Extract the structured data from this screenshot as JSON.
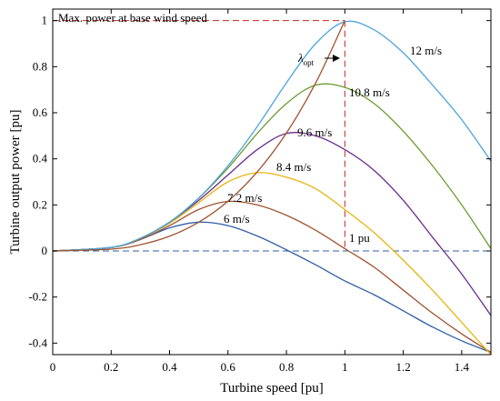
{
  "chart_data": {
    "type": "line",
    "title": "",
    "xlabel": "Turbine speed [pu]",
    "ylabel": "Turbine output power [pu]",
    "xlim": [
      0,
      1.5
    ],
    "ylim": [
      -0.45,
      1.05
    ],
    "grid": false,
    "x_ticks": [
      0,
      0.2,
      0.4,
      0.6,
      0.8,
      1,
      1.2,
      1.4
    ],
    "x_tick_labels": [
      "0",
      "0.2",
      "0.4",
      "0.6",
      "0.8",
      "1",
      "1.2",
      "1.4"
    ],
    "y_ticks": [
      -0.4,
      -0.2,
      0,
      0.2,
      0.4,
      0.6,
      0.8,
      1
    ],
    "y_tick_labels": [
      "-0.4",
      "-0.2",
      "0",
      "0.2",
      "0.4",
      "0.6",
      "0.8",
      "1"
    ],
    "series": [
      {
        "name": "6 m/s",
        "color": "#2f5fa7",
        "x": [
          0,
          0.2,
          0.3,
          0.4,
          0.5,
          0.6,
          0.7,
          0.8,
          0.9,
          1.0,
          1.1,
          1.2,
          1.3,
          1.4,
          1.5
        ],
        "y": [
          0,
          0.015,
          0.05,
          0.1,
          0.125,
          0.11,
          0.065,
          0.005,
          -0.06,
          -0.13,
          -0.19,
          -0.26,
          -0.33,
          -0.39,
          -0.44
        ]
      },
      {
        "name": "7.2 m/s",
        "color": "#a0522d",
        "x": [
          0,
          0.2,
          0.3,
          0.4,
          0.5,
          0.6,
          0.7,
          0.8,
          0.9,
          1.0,
          1.1,
          1.2,
          1.3,
          1.4,
          1.5
        ],
        "y": [
          0,
          0.015,
          0.05,
          0.11,
          0.18,
          0.215,
          0.2,
          0.155,
          0.09,
          0.01,
          -0.07,
          -0.17,
          -0.27,
          -0.36,
          -0.44
        ]
      },
      {
        "name": "8.4 m/s",
        "color": "#e8b50c",
        "x": [
          0,
          0.2,
          0.3,
          0.4,
          0.5,
          0.6,
          0.7,
          0.8,
          0.9,
          1.0,
          1.1,
          1.2,
          1.3,
          1.4,
          1.5
        ],
        "y": [
          0,
          0.015,
          0.055,
          0.12,
          0.21,
          0.3,
          0.34,
          0.32,
          0.27,
          0.18,
          0.08,
          -0.04,
          -0.17,
          -0.31,
          -0.45
        ]
      },
      {
        "name": "9.6 m/s",
        "color": "#6a2c8c",
        "x": [
          0,
          0.2,
          0.3,
          0.4,
          0.5,
          0.6,
          0.7,
          0.8,
          0.9,
          1.0,
          1.1,
          1.2,
          1.3,
          1.4,
          1.5
        ],
        "y": [
          0,
          0.015,
          0.055,
          0.125,
          0.22,
          0.33,
          0.44,
          0.51,
          0.5,
          0.44,
          0.35,
          0.22,
          0.06,
          -0.1,
          -0.28
        ]
      },
      {
        "name": "10.8 m/s",
        "color": "#6b9a2e",
        "x": [
          0,
          0.2,
          0.3,
          0.4,
          0.5,
          0.6,
          0.7,
          0.8,
          0.9,
          1.0,
          1.1,
          1.2,
          1.3,
          1.4,
          1.5
        ],
        "y": [
          0,
          0.015,
          0.055,
          0.125,
          0.23,
          0.36,
          0.51,
          0.64,
          0.72,
          0.71,
          0.64,
          0.52,
          0.37,
          0.2,
          0.01
        ]
      },
      {
        "name": "12 m/s",
        "color": "#4ba4de",
        "x": [
          0,
          0.2,
          0.3,
          0.4,
          0.5,
          0.6,
          0.7,
          0.8,
          0.9,
          1.0,
          1.1,
          1.2,
          1.3,
          1.4,
          1.5
        ],
        "y": [
          0,
          0.015,
          0.055,
          0.125,
          0.23,
          0.37,
          0.54,
          0.73,
          0.9,
          0.995,
          0.96,
          0.86,
          0.72,
          0.57,
          0.39
        ]
      },
      {
        "name": "λopt",
        "color": "#a0522d",
        "x": [
          0,
          0.2,
          0.3,
          0.4,
          0.5,
          0.6,
          0.7,
          0.8,
          0.9,
          1.0
        ],
        "y": [
          0,
          0.008,
          0.027,
          0.064,
          0.125,
          0.216,
          0.343,
          0.512,
          0.729,
          1.0
        ]
      }
    ],
    "reference_lines": [
      {
        "label": "Max. power at base wind speed",
        "orientation": "horizontal",
        "value": 1,
        "color": "#cc2222"
      },
      {
        "label": "1 pu",
        "orientation": "vertical",
        "value": 1,
        "color": "#cc2222"
      },
      {
        "label": "",
        "orientation": "horizontal",
        "value": 0,
        "color": "#2f5fa7"
      }
    ],
    "annotations": {
      "max_power": "Max. power at base wind speed",
      "one_pu": "1 pu",
      "lambda_main": "λ",
      "lambda_sub": "opt",
      "s6": "6 m/s",
      "s72": "7.2 m/s",
      "s84": "8.4 m/s",
      "s96": "9.6 m/s",
      "s108": "10.8 m/s",
      "s12": "12 m/s"
    }
  }
}
